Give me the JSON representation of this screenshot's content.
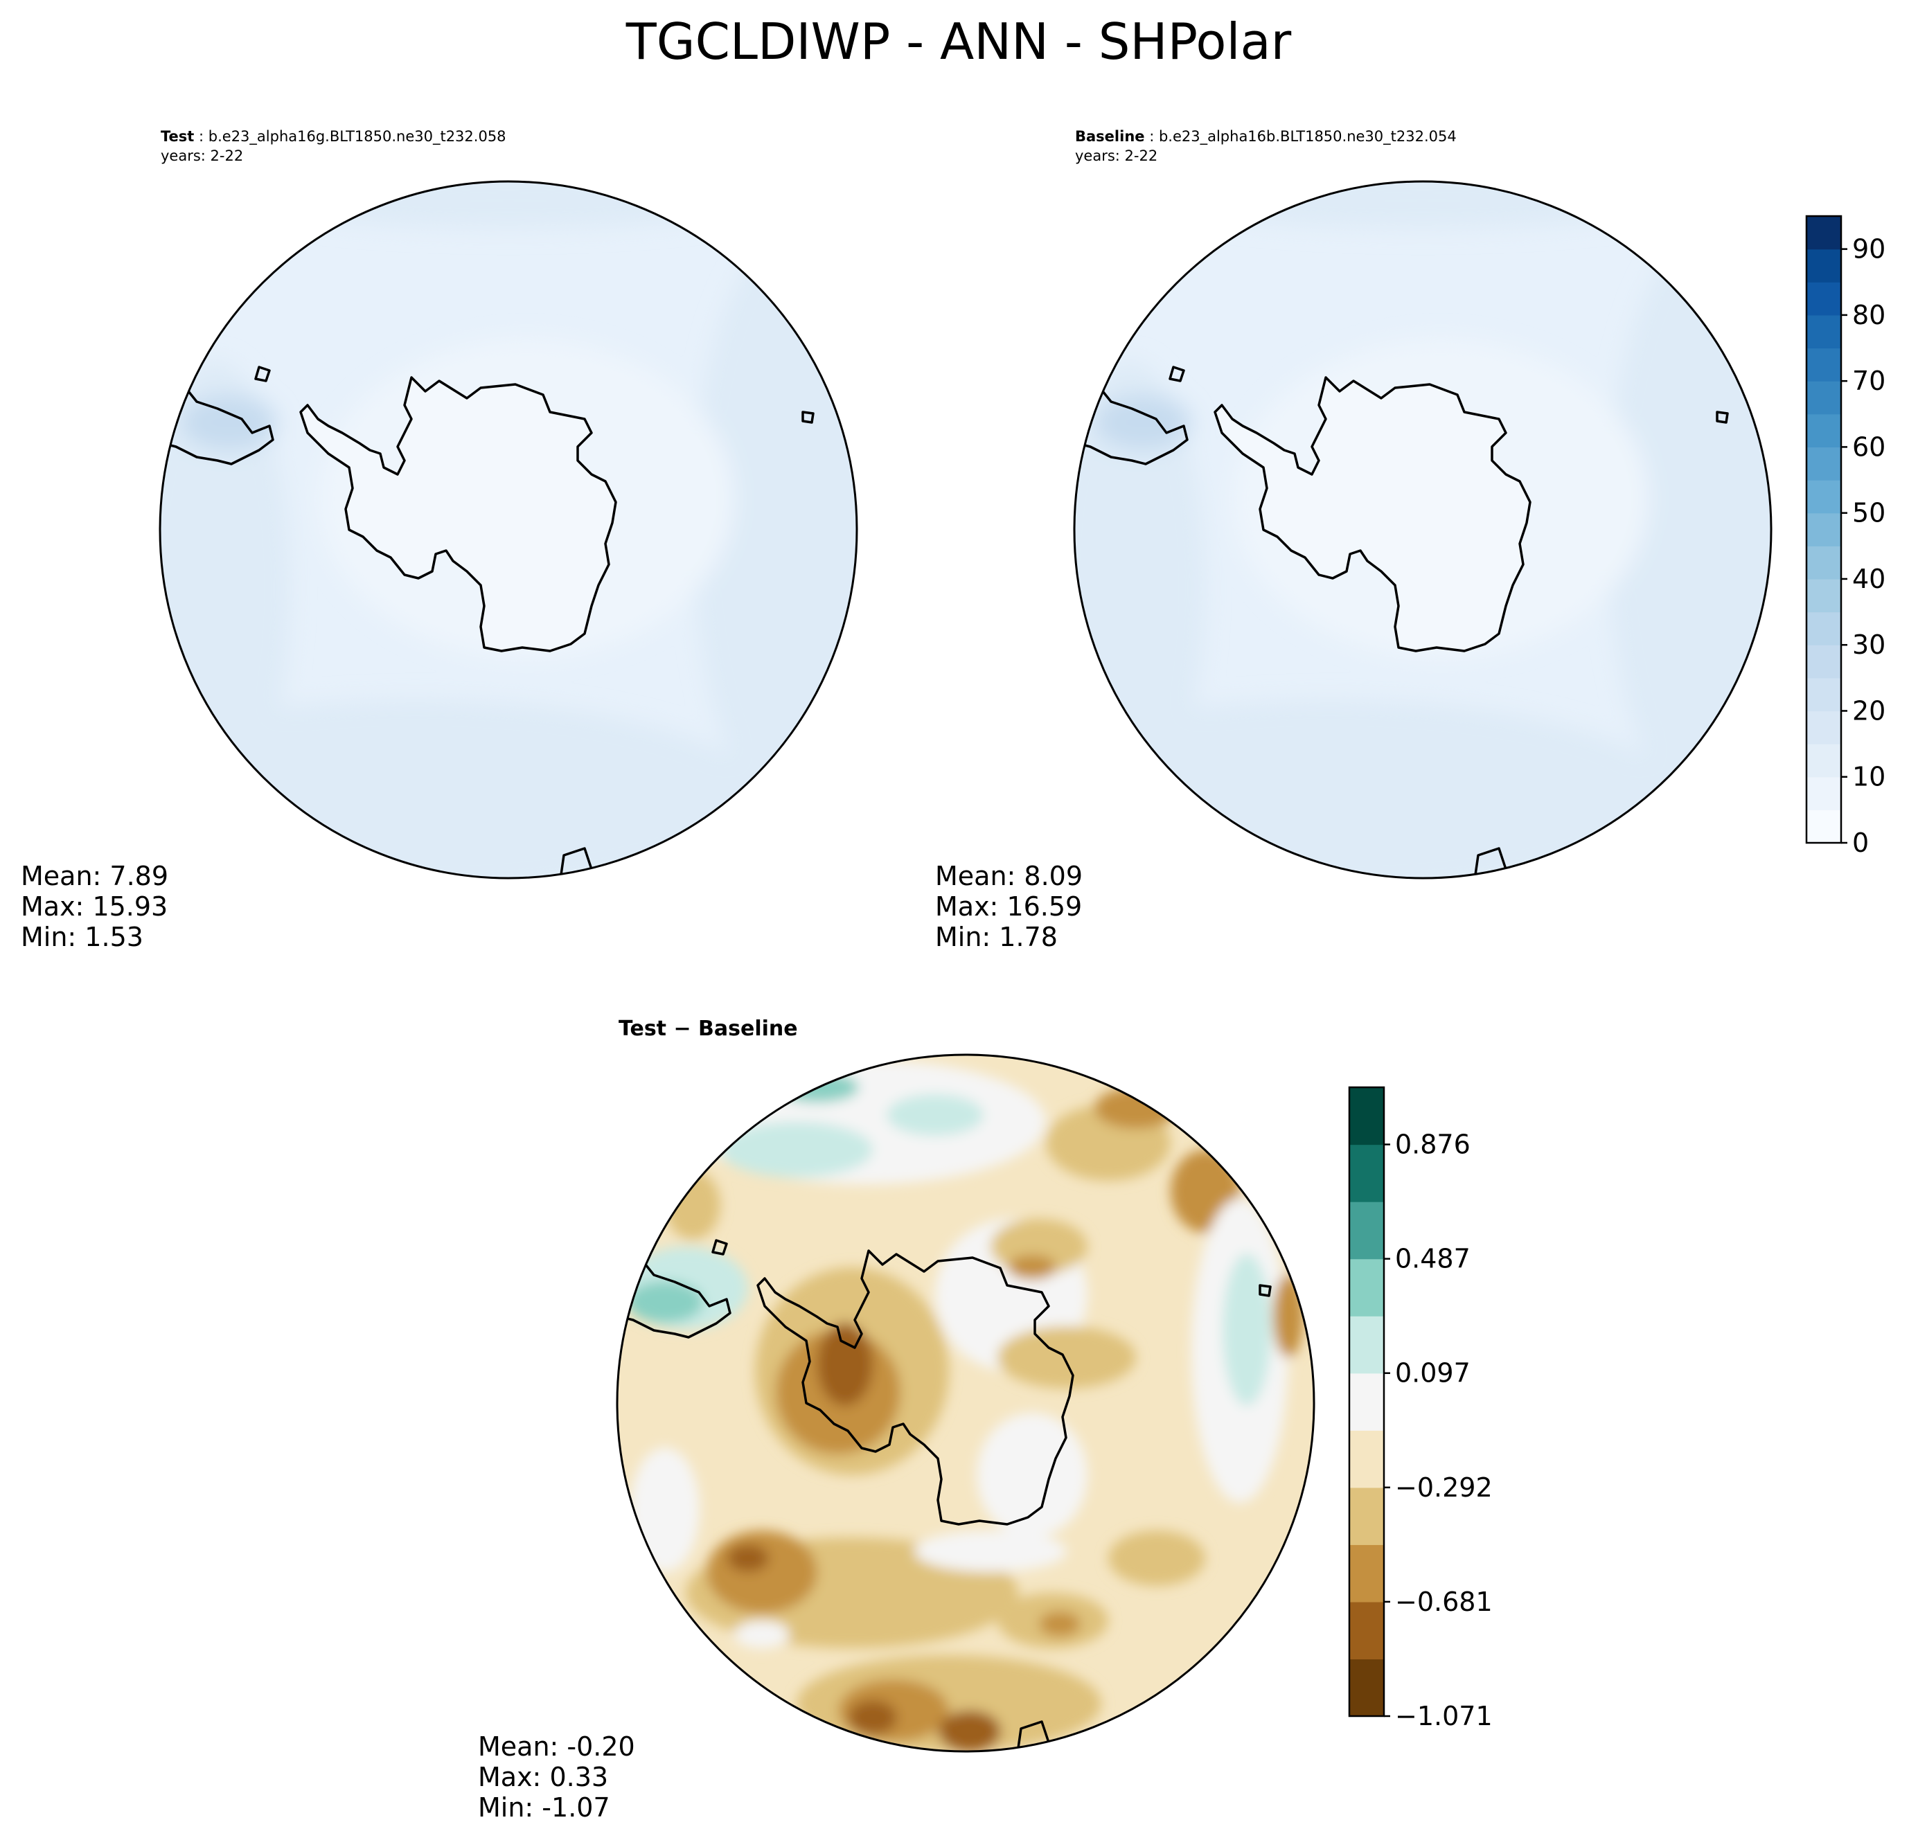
{
  "figure": {
    "title": "TGCLDIWP - ANN - SHPolar"
  },
  "panels": [
    {
      "id": "test",
      "case_label": "Test",
      "case_name": "b.e23_alpha16g.BLT1850.ne30_t232.058",
      "years": "years: 2-22",
      "stats": {
        "mean": "Mean:  7.89",
        "max": "Max: 15.93",
        "min": "Min:  1.53"
      }
    },
    {
      "id": "baseline",
      "case_label": "Baseline",
      "case_name": "b.e23_alpha16b.BLT1850.ne30_t232.054",
      "years": "years: 2-22",
      "stats": {
        "mean": "Mean:  8.09",
        "max": "Max: 16.59",
        "min": "Min:  1.78"
      }
    },
    {
      "id": "diff",
      "case_label": "Test − Baseline",
      "stats": {
        "mean": "Mean: -0.20",
        "max": "Max:  0.33",
        "min": "Min: -1.07"
      }
    }
  ],
  "colorbars": {
    "main": {
      "colormap": "Blues",
      "range": [
        0,
        95
      ],
      "ticks": [
        "0",
        "10",
        "20",
        "30",
        "40",
        "50",
        "60",
        "70",
        "80",
        "90"
      ],
      "tick_values": [
        0,
        10,
        20,
        30,
        40,
        50,
        60,
        70,
        80,
        90
      ],
      "levels": 19,
      "colors": [
        "#f7fbff",
        "#edf4fc",
        "#e3eef8",
        "#d9e7f5",
        "#cfe1f2",
        "#c4daee",
        "#b7d4ea",
        "#a6cde4",
        "#94c4df",
        "#7fb9da",
        "#6aaed6",
        "#58a1cf",
        "#4695c8",
        "#3787c0",
        "#2979b9",
        "#1c6bb0",
        "#1059a6",
        "#084a91",
        "#08306b"
      ]
    },
    "diff": {
      "colormap": "BrBG",
      "ticks": [
        "−1.071",
        "−0.681",
        "−0.292",
        "0.097",
        "0.487",
        "0.876"
      ],
      "tick_values": [
        -1.071,
        -0.681,
        -0.292,
        0.097,
        0.487,
        0.876
      ],
      "colors": [
        "#6b3e09",
        "#9c5f1b",
        "#c49040",
        "#dfc27d",
        "#f5e6c3",
        "#f5f5f5",
        "#c9eae5",
        "#89d0c3",
        "#44a096",
        "#137367",
        "#01493e"
      ]
    }
  },
  "map_colors": {
    "test_field": [
      "#e7f1fb",
      "#deebf7",
      "#eef5fc",
      "#f3f8fd"
    ],
    "baseline_field": [
      "#e7f1fb",
      "#deebf7",
      "#eef5fc",
      "#f3f8fd"
    ],
    "diff_field": [
      "#f5f5f5",
      "#f5e6c3",
      "#dfc27d",
      "#c49040",
      "#9c5f1b",
      "#6b3e09",
      "#c9eae5",
      "#89d0c3"
    ]
  }
}
